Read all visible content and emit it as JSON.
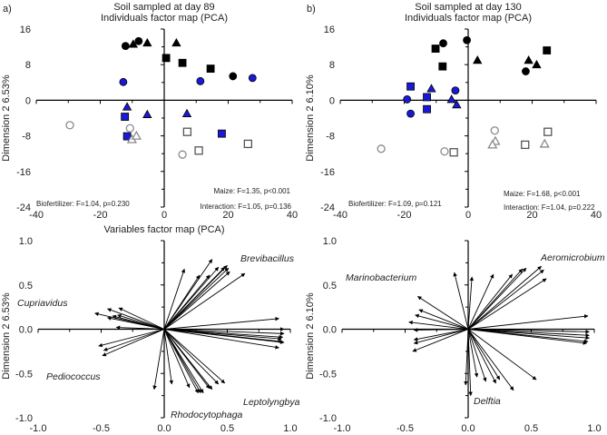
{
  "colors": {
    "blue": "#1a1ad6",
    "black": "#000000",
    "grey": "#8a8a8a"
  },
  "chart_data": [
    {
      "type": "scatter",
      "panel_label": "a)",
      "title": "Soil sampled at day 89",
      "subtitle": "Individuals factor map (PCA)",
      "xlabel": "",
      "ylabel": "Dimension 2 6.53%",
      "xlim": [
        -40,
        40
      ],
      "ylim": [
        -24,
        16
      ],
      "xticks": [
        "-40",
        "-20",
        "0",
        "20",
        "40"
      ],
      "yticks": [
        "16",
        "8",
        "0",
        "-8",
        "-16",
        "-24"
      ],
      "stats": {
        "maize": "Maize: F=1.35, p<0.001",
        "interaction": "Interaction: F=1.05, p=0.136",
        "biofertilizer": "Biofertilizer: F=1.04, p=0.230"
      },
      "points": [
        {
          "x": -12.1,
          "y": 12.2,
          "m": "circle",
          "c": "black"
        },
        {
          "x": -9.7,
          "y": 12.6,
          "m": "triangle",
          "c": "black"
        },
        {
          "x": -8.0,
          "y": 13.3,
          "m": "circle",
          "c": "black"
        },
        {
          "x": -5.3,
          "y": 12.9,
          "m": "triangle",
          "c": "black"
        },
        {
          "x": 3.8,
          "y": 12.9,
          "m": "triangle",
          "c": "black"
        },
        {
          "x": 0.6,
          "y": 9.5,
          "m": "square",
          "c": "black"
        },
        {
          "x": 5.7,
          "y": 8.4,
          "m": "square",
          "c": "black"
        },
        {
          "x": 14.5,
          "y": 7.1,
          "m": "square",
          "c": "black"
        },
        {
          "x": 21.5,
          "y": 5.4,
          "m": "circle",
          "c": "black"
        },
        {
          "x": 27.6,
          "y": 5.0,
          "m": "circle",
          "c": "blue"
        },
        {
          "x": 11.3,
          "y": 4.3,
          "m": "circle",
          "c": "blue"
        },
        {
          "x": -12.8,
          "y": 4.1,
          "m": "circle",
          "c": "blue"
        },
        {
          "x": -11.6,
          "y": -1.5,
          "m": "triangle",
          "c": "blue"
        },
        {
          "x": -12.3,
          "y": -3.7,
          "m": "square",
          "c": "blue"
        },
        {
          "x": -5.3,
          "y": -3.2,
          "m": "triangle",
          "c": "blue"
        },
        {
          "x": 7.1,
          "y": -3.0,
          "m": "triangle",
          "c": "blue"
        },
        {
          "x": -11.6,
          "y": -8.1,
          "m": "square",
          "c": "blue"
        },
        {
          "x": 18.0,
          "y": -7.5,
          "m": "square",
          "c": "blue"
        },
        {
          "x": -29.5,
          "y": -5.6,
          "m": "circle",
          "c": "open"
        },
        {
          "x": -10.7,
          "y": -6.3,
          "m": "circle",
          "c": "open"
        },
        {
          "x": -10.1,
          "y": -8.8,
          "m": "triangle",
          "c": "open"
        },
        {
          "x": -8.7,
          "y": -8.0,
          "m": "triangle",
          "c": "open"
        },
        {
          "x": 7.2,
          "y": -7.1,
          "m": "square",
          "c": "open"
        },
        {
          "x": 10.8,
          "y": -11.3,
          "m": "square",
          "c": "open"
        },
        {
          "x": 26.2,
          "y": -9.8,
          "m": "square",
          "c": "open"
        },
        {
          "x": 5.7,
          "y": -12.2,
          "m": "circle",
          "c": "open"
        }
      ]
    },
    {
      "type": "scatter",
      "panel_label": "b)",
      "title": "Soil sampled at day 130",
      "subtitle": "Individuals factor map (PCA)",
      "xlabel": "",
      "ylabel": "Dimension 2 6.10%",
      "xlim": [
        -40,
        40
      ],
      "ylim": [
        -24,
        16
      ],
      "xticks": [
        "-40",
        "-20",
        "0",
        "20",
        "40"
      ],
      "yticks": [
        "16",
        "8",
        "0",
        "-8",
        "-16",
        "-24"
      ],
      "stats": {
        "maize": "Maize: F=1.68, p<0.001",
        "interaction": "Interaction: F=1.04, p=0.222",
        "biofertilizer": "Biofertilizer: F=1.09, p=0.121"
      },
      "points": [
        {
          "x": -7.8,
          "y": 12.8,
          "m": "circle",
          "c": "black"
        },
        {
          "x": -10.2,
          "y": 11.6,
          "m": "square",
          "c": "black"
        },
        {
          "x": -0.4,
          "y": 13.5,
          "m": "circle",
          "c": "black"
        },
        {
          "x": -8.0,
          "y": 7.6,
          "m": "square",
          "c": "black"
        },
        {
          "x": 2.9,
          "y": 9.0,
          "m": "triangle",
          "c": "black"
        },
        {
          "x": 24.6,
          "y": 11.2,
          "m": "square",
          "c": "black"
        },
        {
          "x": 18.9,
          "y": 9.0,
          "m": "triangle",
          "c": "black"
        },
        {
          "x": 21.4,
          "y": 8.0,
          "m": "triangle",
          "c": "black"
        },
        {
          "x": 18.0,
          "y": 6.5,
          "m": "circle",
          "c": "black"
        },
        {
          "x": -18.0,
          "y": 3.1,
          "m": "square",
          "c": "blue"
        },
        {
          "x": -11.5,
          "y": 2.6,
          "m": "triangle",
          "c": "blue"
        },
        {
          "x": -4.0,
          "y": 2.2,
          "m": "circle",
          "c": "blue"
        },
        {
          "x": -19.1,
          "y": 0.2,
          "m": "circle",
          "c": "blue"
        },
        {
          "x": -12.9,
          "y": 0.7,
          "m": "square",
          "c": "blue"
        },
        {
          "x": -5.2,
          "y": 0.2,
          "m": "triangle",
          "c": "blue"
        },
        {
          "x": -3.6,
          "y": -1.0,
          "m": "triangle",
          "c": "blue"
        },
        {
          "x": -18.0,
          "y": -3.0,
          "m": "circle",
          "c": "blue"
        },
        {
          "x": -12.9,
          "y": -2.0,
          "m": "square",
          "c": "blue"
        },
        {
          "x": -27.2,
          "y": -10.9,
          "m": "circle",
          "c": "open"
        },
        {
          "x": -7.4,
          "y": -11.5,
          "m": "circle",
          "c": "open"
        },
        {
          "x": -4.5,
          "y": -11.7,
          "m": "square",
          "c": "open"
        },
        {
          "x": 8.3,
          "y": -6.8,
          "m": "circle",
          "c": "open"
        },
        {
          "x": 8.5,
          "y": -9.2,
          "m": "triangle",
          "c": "open"
        },
        {
          "x": 7.6,
          "y": -10.0,
          "m": "triangle",
          "c": "open"
        },
        {
          "x": 17.8,
          "y": -10.0,
          "m": "square",
          "c": "open"
        },
        {
          "x": 24.9,
          "y": -7.1,
          "m": "square",
          "c": "open"
        },
        {
          "x": 23.9,
          "y": -9.8,
          "m": "triangle",
          "c": "open"
        }
      ]
    },
    {
      "type": "arrows",
      "title": "Variables factor map (PCA)",
      "xlabel": "",
      "ylabel": "Dimension 2 6.53%",
      "xlim": [
        -1,
        1
      ],
      "ylim": [
        -1,
        1
      ],
      "xticks": [
        "-1.0",
        "-0.5",
        "0.0",
        "0.5",
        "1.0"
      ],
      "yticks": [
        "1.0",
        "0.5",
        "0.0",
        "-0.5",
        "-1.0"
      ],
      "annotations": [
        "Brevibacillus",
        "Cupriavidus",
        "Pediococcus",
        "Leptolyngbya",
        "Rhodocytophaga"
      ],
      "vectors": [
        [
          0.16,
          0.68
        ],
        [
          0.38,
          0.79
        ],
        [
          0.28,
          0.61
        ],
        [
          0.43,
          0.7
        ],
        [
          0.36,
          0.61
        ],
        [
          0.5,
          0.72
        ],
        [
          0.51,
          0.69
        ],
        [
          0.52,
          0.65
        ],
        [
          0.48,
          0.7
        ],
        [
          0.64,
          0.63
        ],
        [
          0.91,
          0.12
        ],
        [
          0.95,
          0.0
        ],
        [
          0.95,
          -0.05
        ],
        [
          0.94,
          -0.09
        ],
        [
          0.93,
          -0.11
        ],
        [
          0.94,
          -0.14
        ],
        [
          0.95,
          -0.15
        ],
        [
          0.91,
          -0.21
        ],
        [
          0.48,
          -0.61
        ],
        [
          0.43,
          -0.62
        ],
        [
          0.38,
          -0.68
        ],
        [
          0.36,
          -0.67
        ],
        [
          0.31,
          -0.72
        ],
        [
          0.29,
          -0.72
        ],
        [
          0.27,
          -0.72
        ],
        [
          0.2,
          -0.66
        ],
        [
          0.06,
          -0.62
        ],
        [
          -0.08,
          -0.68
        ],
        [
          -0.49,
          -0.3
        ],
        [
          -0.48,
          -0.24
        ],
        [
          -0.52,
          -0.19
        ],
        [
          -0.55,
          0.18
        ],
        [
          -0.45,
          0.23
        ],
        [
          -0.36,
          0.24
        ],
        [
          -0.37,
          0.16
        ],
        [
          -0.41,
          0.15
        ],
        [
          -0.45,
          0.13
        ],
        [
          -0.38,
          0.02
        ]
      ]
    },
    {
      "type": "arrows",
      "title": "",
      "xlabel": "",
      "ylabel": "Dimension 2 6.10%",
      "xlim": [
        -1,
        1
      ],
      "ylim": [
        -1,
        1
      ],
      "xticks": [
        "-1.0",
        "-0.5",
        "0.0",
        "0.5",
        "1.0"
      ],
      "yticks": [
        "1.0",
        "0.5",
        "0.0",
        "-0.5",
        "-1.0"
      ],
      "annotations": [
        "Aeromicrobium",
        "Marinobacterium",
        "Delftia"
      ],
      "vectors": [
        [
          -0.11,
          0.64
        ],
        [
          0.03,
          0.59
        ],
        [
          0.2,
          0.62
        ],
        [
          0.35,
          0.62
        ],
        [
          0.43,
          0.68
        ],
        [
          0.46,
          0.69
        ],
        [
          0.58,
          0.71
        ],
        [
          0.6,
          0.67
        ],
        [
          0.62,
          0.57
        ],
        [
          0.95,
          0.15
        ],
        [
          0.96,
          -0.03
        ],
        [
          0.96,
          -0.07
        ],
        [
          0.96,
          -0.1
        ],
        [
          0.95,
          -0.14
        ],
        [
          0.94,
          -0.16
        ],
        [
          0.54,
          -0.57
        ],
        [
          0.36,
          -0.69
        ],
        [
          0.25,
          -0.57
        ],
        [
          0.22,
          -0.61
        ],
        [
          0.14,
          -0.59
        ],
        [
          0.07,
          -0.54
        ],
        [
          0.02,
          -0.75
        ],
        [
          -0.02,
          -0.63
        ],
        [
          -0.44,
          -0.25
        ],
        [
          -0.43,
          -0.16
        ],
        [
          -0.43,
          -0.12
        ],
        [
          -0.43,
          -0.01
        ],
        [
          -0.47,
          0.08
        ],
        [
          -0.42,
          0.16
        ],
        [
          -0.39,
          0.22
        ],
        [
          -0.4,
          0.37
        ]
      ]
    }
  ]
}
